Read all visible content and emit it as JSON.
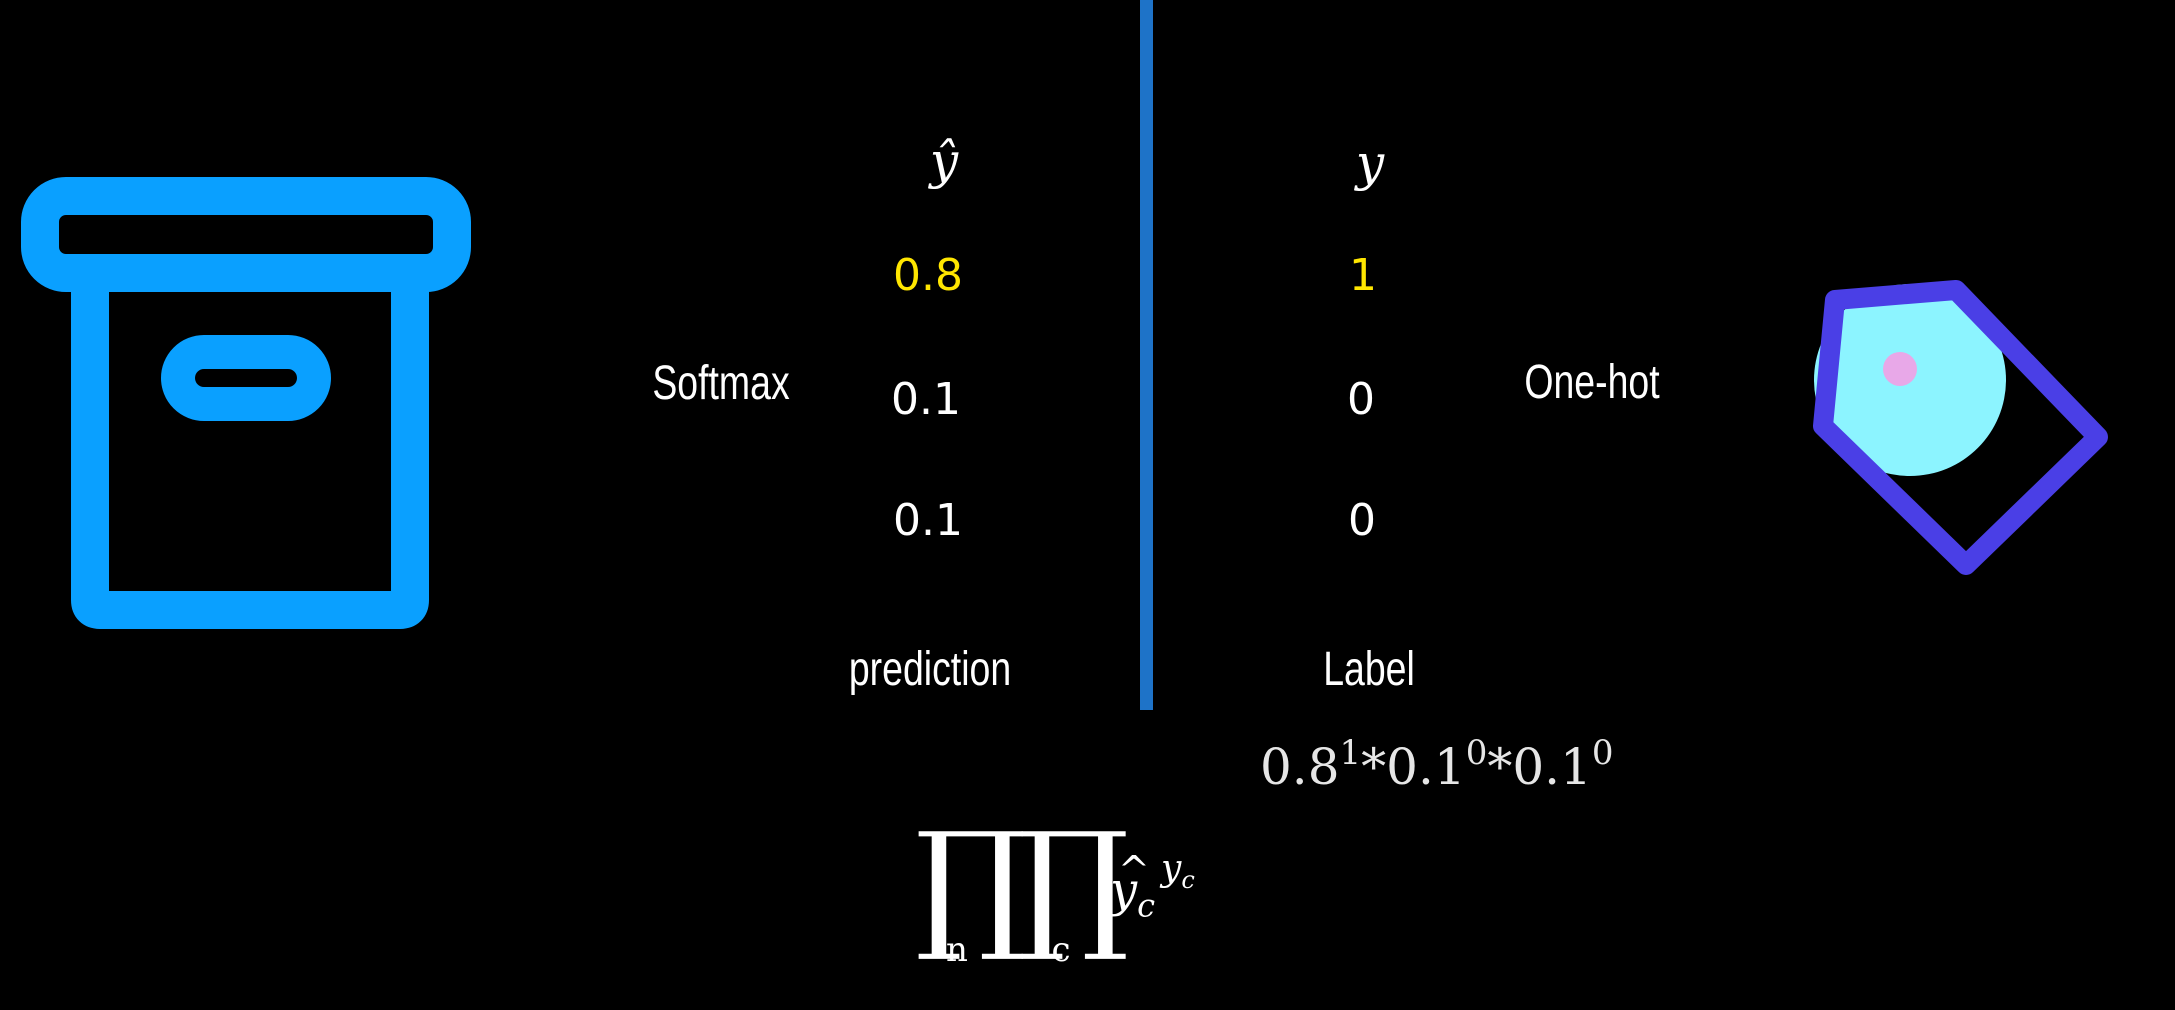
{
  "colors": {
    "background": "#000000",
    "divider": "#1e73c8",
    "highlight": "#ffe600",
    "box_icon": "#0aa0ff",
    "tag_body": "#4a3fe6",
    "tag_fill": "#8cf4ff",
    "tag_hole": "#e8a8e8"
  },
  "icons": {
    "left": "archive-box-icon",
    "right": "price-tag-icon"
  },
  "prediction": {
    "header": "ŷ",
    "values": [
      "0.8",
      "0.1",
      "0.1"
    ],
    "side_label": "Softmax",
    "bottom_label": "prediction"
  },
  "label": {
    "header": "y",
    "values": [
      "1",
      "0",
      "0"
    ],
    "side_label": "One-hot",
    "bottom_label": "Label"
  },
  "expression": {
    "b1": "0.8",
    "e1": "1",
    "op1": "*",
    "b2": "0.1",
    "e2": "0",
    "op2": "*",
    "b3": "0.1",
    "e3": "0"
  },
  "formula": {
    "outer_index": "n",
    "inner_index": "c",
    "var": "y",
    "var_sub": "c",
    "exp_var": "y",
    "exp_sub": "c"
  }
}
